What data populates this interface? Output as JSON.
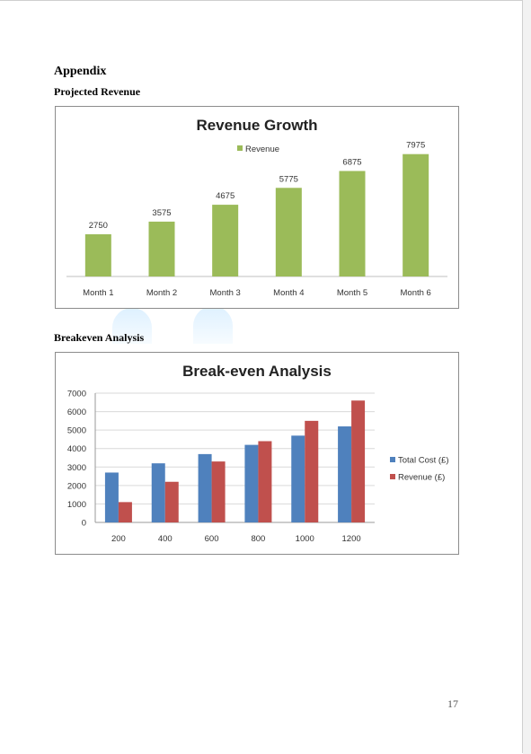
{
  "page": {
    "heading": "Appendix",
    "section1_title": "Projected Revenue",
    "section2_title": "Breakeven Analysis",
    "page_number": "17"
  },
  "chart_data": [
    {
      "type": "bar",
      "title": "Revenue Growth",
      "categories": [
        "Month 1",
        "Month 2",
        "Month 3",
        "Month 4",
        "Month 5",
        "Month 6"
      ],
      "series": [
        {
          "name": "Revenue",
          "values": [
            2750,
            3575,
            4675,
            5775,
            6875,
            7975
          ],
          "color": "#9bbb59"
        }
      ],
      "data_labels": true,
      "legend_position": "top",
      "ylim": [
        0,
        8000
      ],
      "grid": false,
      "y_axis_visible": false
    },
    {
      "type": "bar",
      "title": "Break-even Analysis",
      "categories": [
        "200",
        "400",
        "600",
        "800",
        "1000",
        "1200"
      ],
      "series": [
        {
          "name": "Total Cost (£)",
          "values": [
            2700,
            3200,
            3700,
            4200,
            4700,
            5200
          ],
          "color": "#4f81bd"
        },
        {
          "name": "Revenue (£)",
          "values": [
            1100,
            2200,
            3300,
            4400,
            5500,
            6600
          ],
          "color": "#c0504d"
        }
      ],
      "yticks": [
        "0",
        "1000",
        "2000",
        "3000",
        "4000",
        "5000",
        "6000",
        "7000"
      ],
      "ylim": [
        0,
        7000
      ],
      "grid": true,
      "legend_position": "right"
    }
  ]
}
